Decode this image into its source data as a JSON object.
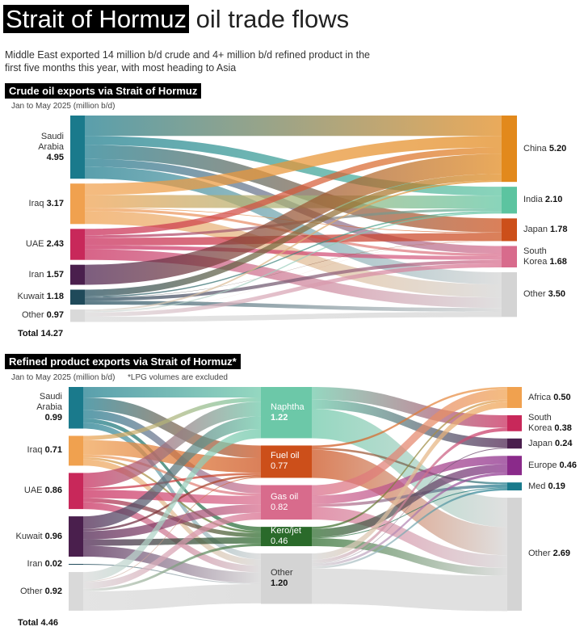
{
  "header": {
    "title_highlight": "Strait of Hormuz",
    "title_rest": "oil trade flows",
    "subtitle": "Middle East exported 14 million b/d crude and 4+ million b/d refined product in the first five months this year, with most heading to Asia"
  },
  "chart_data": [
    {
      "type": "sankey",
      "title": "Crude oil exports via Strait of Hormuz",
      "subtitle": "Jan to May 2025 (million b/d)",
      "total_label": "Total",
      "total": 14.27,
      "columns": [
        {
          "names": [
            "Saudi\nArabia",
            "Iraq",
            "UAE",
            "Iran",
            "Kuwait",
            "Other"
          ],
          "values": [
            4.95,
            3.17,
            2.43,
            1.57,
            1.18,
            0.97
          ],
          "value_labels": [
            "4.95",
            "3.17",
            "2.43",
            "1.57",
            "1.18",
            "0.97"
          ],
          "colors": [
            "#1a7a8c",
            "#f0a14f",
            "#c8285a",
            "#4a1f4d",
            "#1f4a5a",
            "#d9d9d9"
          ]
        },
        {
          "names": [
            "China",
            "India",
            "Japan",
            "South\nKorea",
            "Other"
          ],
          "values": [
            5.2,
            2.1,
            1.78,
            1.68,
            3.5
          ],
          "value_labels": [
            "5.20",
            "2.10",
            "1.78",
            "1.68",
            "3.50"
          ],
          "colors": [
            "#e2891c",
            "#5cc4a0",
            "#cc4f1a",
            "#d86b8c",
            "#d4d4d4"
          ]
        }
      ],
      "links": [
        [
          {
            "source": 0,
            "target": 0,
            "value": 1.6
          },
          {
            "source": 0,
            "target": 1,
            "value": 0.7
          },
          {
            "source": 0,
            "target": 2,
            "value": 1.1
          },
          {
            "source": 0,
            "target": 3,
            "value": 0.6
          },
          {
            "source": 0,
            "target": 4,
            "value": 0.95
          },
          {
            "source": 1,
            "target": 0,
            "value": 0.9
          },
          {
            "source": 1,
            "target": 1,
            "value": 1.0
          },
          {
            "source": 1,
            "target": 2,
            "value": 0.05
          },
          {
            "source": 1,
            "target": 3,
            "value": 0.2
          },
          {
            "source": 1,
            "target": 4,
            "value": 1.02
          },
          {
            "source": 2,
            "target": 0,
            "value": 0.5
          },
          {
            "source": 2,
            "target": 1,
            "value": 0.2
          },
          {
            "source": 2,
            "target": 2,
            "value": 0.6
          },
          {
            "source": 2,
            "target": 3,
            "value": 0.3
          },
          {
            "source": 2,
            "target": 4,
            "value": 0.83
          },
          {
            "source": 3,
            "target": 0,
            "value": 1.57
          },
          {
            "source": 4,
            "target": 0,
            "value": 0.5
          },
          {
            "source": 4,
            "target": 1,
            "value": 0.1
          },
          {
            "source": 4,
            "target": 2,
            "value": 0.02
          },
          {
            "source": 4,
            "target": 3,
            "value": 0.26
          },
          {
            "source": 4,
            "target": 4,
            "value": 0.3
          },
          {
            "source": 5,
            "target": 0,
            "value": 0.13
          },
          {
            "source": 5,
            "target": 1,
            "value": 0.1
          },
          {
            "source": 5,
            "target": 2,
            "value": 0.01
          },
          {
            "source": 5,
            "target": 3,
            "value": 0.32
          },
          {
            "source": 5,
            "target": 4,
            "value": 0.41
          }
        ]
      ]
    },
    {
      "type": "sankey",
      "title": "Refined product exports via Strait of Hormuz*",
      "subtitle": "Jan to May 2025 (million b/d)",
      "note": "*LPG volumes are excluded",
      "total_label": "Total",
      "total": 4.46,
      "columns": [
        {
          "names": [
            "Saudi\nArabia",
            "Iraq",
            "UAE",
            "Kuwait",
            "Iran",
            "Other"
          ],
          "values": [
            0.99,
            0.71,
            0.86,
            0.96,
            0.02,
            0.92
          ],
          "value_labels": [
            "0.99",
            "0.71",
            "0.86",
            "0.96",
            "0.02",
            "0.92"
          ],
          "colors": [
            "#1a7a8c",
            "#f0a14f",
            "#c8285a",
            "#4a1f4d",
            "#1f4a5a",
            "#d9d9d9"
          ]
        },
        {
          "names": [
            "Naphtha",
            "Fuel oil",
            "Gas oil",
            "Kero/jet",
            "Other"
          ],
          "values": [
            1.22,
            0.77,
            0.82,
            0.46,
            1.2
          ],
          "value_labels": [
            "1.22",
            "0.77",
            "0.82",
            "0.46",
            "1.20"
          ],
          "colors": [
            "#6cc8a8",
            "#cc4f1a",
            "#d86b8c",
            "#2a6a2a",
            "#d4d4d4"
          ]
        },
        {
          "names": [
            "Africa",
            "South\nKorea",
            "Japan",
            "Europe",
            "Med",
            "Other"
          ],
          "values": [
            0.5,
            0.38,
            0.24,
            0.46,
            0.19,
            2.69
          ],
          "value_labels": [
            "0.50",
            "0.38",
            "0.24",
            "0.46",
            "0.19",
            "2.69"
          ],
          "colors": [
            "#f0a14f",
            "#c8285a",
            "#4a1f4d",
            "#8a2a8a",
            "#1a7a8c",
            "#d4d4d4"
          ]
        }
      ],
      "links": [
        [
          {
            "source": 0,
            "target": 0,
            "value": 0.25
          },
          {
            "source": 0,
            "target": 1,
            "value": 0.3
          },
          {
            "source": 0,
            "target": 2,
            "value": 0.2
          },
          {
            "source": 0,
            "target": 3,
            "value": 0.1
          },
          {
            "source": 0,
            "target": 4,
            "value": 0.14
          },
          {
            "source": 1,
            "target": 0,
            "value": 0.1
          },
          {
            "source": 1,
            "target": 1,
            "value": 0.35
          },
          {
            "source": 1,
            "target": 2,
            "value": 0.06
          },
          {
            "source": 1,
            "target": 3,
            "value": 0.05
          },
          {
            "source": 1,
            "target": 4,
            "value": 0.15
          },
          {
            "source": 2,
            "target": 0,
            "value": 0.35
          },
          {
            "source": 2,
            "target": 1,
            "value": 0.05
          },
          {
            "source": 2,
            "target": 2,
            "value": 0.2
          },
          {
            "source": 2,
            "target": 3,
            "value": 0.1
          },
          {
            "source": 2,
            "target": 4,
            "value": 0.16
          },
          {
            "source": 3,
            "target": 0,
            "value": 0.3
          },
          {
            "source": 3,
            "target": 1,
            "value": 0.05
          },
          {
            "source": 3,
            "target": 2,
            "value": 0.2
          },
          {
            "source": 3,
            "target": 3,
            "value": 0.15
          },
          {
            "source": 3,
            "target": 4,
            "value": 0.26
          },
          {
            "source": 4,
            "target": 4,
            "value": 0.02
          },
          {
            "source": 5,
            "target": 0,
            "value": 0.22
          },
          {
            "source": 5,
            "target": 1,
            "value": 0.02
          },
          {
            "source": 5,
            "target": 2,
            "value": 0.16
          },
          {
            "source": 5,
            "target": 3,
            "value": 0.06
          },
          {
            "source": 5,
            "target": 4,
            "value": 0.46
          }
        ],
        [
          {
            "source": 0,
            "target": 1,
            "value": 0.3
          },
          {
            "source": 0,
            "target": 2,
            "value": 0.22
          },
          {
            "source": 0,
            "target": 5,
            "value": 0.7
          },
          {
            "source": 1,
            "target": 0,
            "value": 0.05
          },
          {
            "source": 1,
            "target": 4,
            "value": 0.05
          },
          {
            "source": 1,
            "target": 5,
            "value": 0.67
          },
          {
            "source": 2,
            "target": 0,
            "value": 0.25
          },
          {
            "source": 2,
            "target": 3,
            "value": 0.2
          },
          {
            "source": 2,
            "target": 4,
            "value": 0.07
          },
          {
            "source": 2,
            "target": 5,
            "value": 0.3
          },
          {
            "source": 3,
            "target": 0,
            "value": 0.05
          },
          {
            "source": 3,
            "target": 3,
            "value": 0.2
          },
          {
            "source": 3,
            "target": 4,
            "value": 0.02
          },
          {
            "source": 3,
            "target": 5,
            "value": 0.19
          },
          {
            "source": 4,
            "target": 0,
            "value": 0.15
          },
          {
            "source": 4,
            "target": 1,
            "value": 0.08
          },
          {
            "source": 4,
            "target": 2,
            "value": 0.02
          },
          {
            "source": 4,
            "target": 3,
            "value": 0.06
          },
          {
            "source": 4,
            "target": 4,
            "value": 0.05
          },
          {
            "source": 4,
            "target": 5,
            "value": 0.84
          }
        ]
      ]
    }
  ]
}
